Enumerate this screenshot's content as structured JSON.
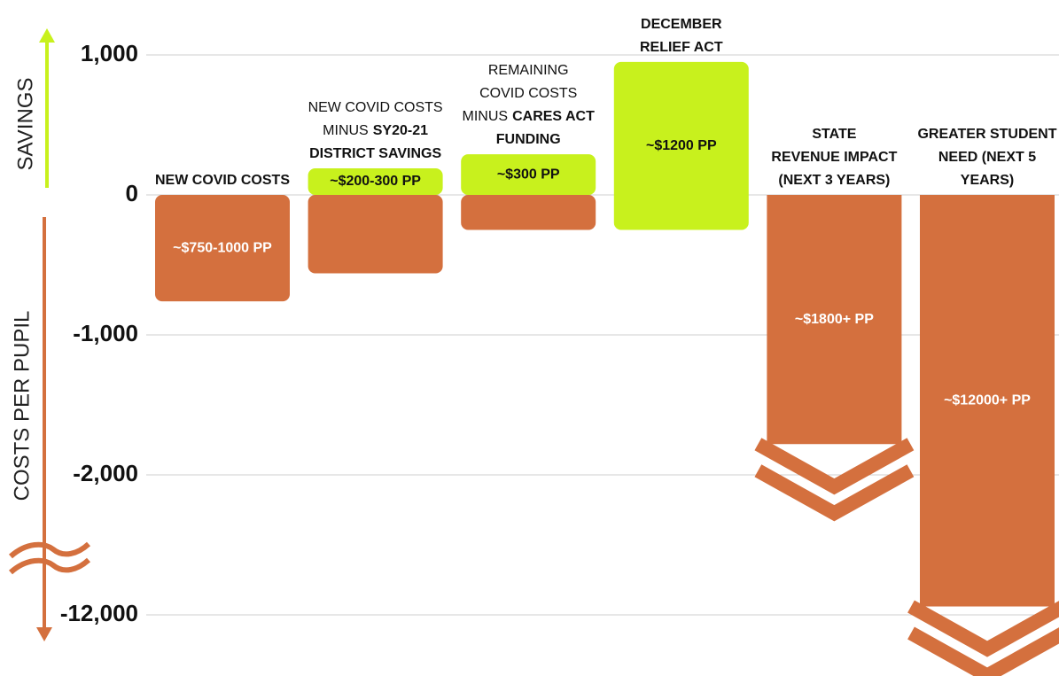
{
  "chart_data": {
    "type": "bar",
    "y_title_top": "SAVINGS",
    "y_title_bottom": "COSTS PER PUPIL",
    "ylim": [
      1000,
      -12000
    ],
    "yticks": [
      {
        "value": 1000,
        "label": "1,000"
      },
      0,
      {
        "value": -1000,
        "label": "-1,000"
      },
      {
        "value": -2000,
        "label": "-2,000"
      },
      {
        "value": -12000,
        "label": "-12,000"
      }
    ],
    "axis_break": true,
    "grid": true,
    "category_lines": [
      [
        [
          {
            "text": "NEW COVID COSTS",
            "bold": true
          }
        ]
      ],
      [
        [
          {
            "text": "NEW COVID COSTS",
            "bold": false
          }
        ],
        [
          {
            "text": "MINUS",
            "bold": false
          },
          {
            "text": "SY20-21",
            "bold": true
          }
        ],
        [
          {
            "text": "DISTRICT SAVINGS",
            "bold": true
          }
        ]
      ],
      [
        [
          {
            "text": "REMAINING",
            "bold": false
          }
        ],
        [
          {
            "text": "COVID COSTS",
            "bold": false
          }
        ],
        [
          {
            "text": "MINUS",
            "bold": false
          },
          {
            "text": "CARES ACT",
            "bold": true
          }
        ],
        [
          {
            "text": "FUNDING",
            "bold": true
          }
        ]
      ],
      [
        [
          {
            "text": "DECEMBER",
            "bold": true
          }
        ],
        [
          {
            "text": "RELIEF ACT",
            "bold": true
          }
        ]
      ],
      [
        [
          {
            "text": "STATE",
            "bold": true
          }
        ],
        [
          {
            "text": "REVENUE IMPACT",
            "bold": true
          }
        ],
        [
          {
            "text": "(NEXT 3 YEARS)",
            "bold": true
          }
        ]
      ],
      [
        [
          {
            "text": "GREATER STUDENT",
            "bold": true
          }
        ],
        [
          {
            "text": "NEED (NEXT 5",
            "bold": true
          }
        ],
        [
          {
            "text": "YEARS)",
            "bold": true
          }
        ]
      ]
    ],
    "series": [
      {
        "color": "#c8f11d",
        "values": [
          null,
          190,
          290,
          950,
          null,
          null
        ],
        "low": [
          null,
          0,
          0,
          -250,
          null,
          null
        ]
      },
      {
        "color": "#d4703e",
        "values": [
          -760,
          -560,
          -250,
          null,
          -1780,
          -11400
        ],
        "arrow": [
          false,
          false,
          false,
          false,
          true,
          true
        ]
      }
    ],
    "bar_labels": [
      "~$750-1000 PP",
      "~$200-300 PP",
      "~$300 PP",
      "~$1200 PP",
      "~$1800+ PP",
      "~$12000+ PP"
    ]
  }
}
